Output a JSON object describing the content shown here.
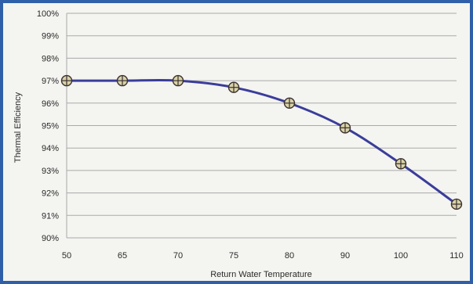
{
  "colors": {
    "border": "#2f5fa8",
    "plot_background": "#f4f4f1",
    "gridline": "#a9a9a9",
    "series_line": "#3a3d9a",
    "marker_fill": "#d8d2a6",
    "marker_stroke": "#3a3030"
  },
  "chart_data": {
    "type": "line",
    "title": "",
    "xlabel": "Return Water Temperature",
    "ylabel": "Thermal Efficiency",
    "categories": [
      "50",
      "65",
      "70",
      "75",
      "80",
      "90",
      "100",
      "110"
    ],
    "series": [
      {
        "values": [
          97.0,
          97.0,
          97.0,
          96.7,
          96.0,
          94.9,
          93.3,
          91.5
        ]
      }
    ],
    "ylim": [
      90,
      100
    ],
    "y_ticks": [
      90,
      91,
      92,
      93,
      94,
      95,
      96,
      97,
      98,
      99,
      100
    ],
    "y_tick_labels": [
      "90%",
      "91%",
      "92%",
      "93%",
      "94%",
      "95%",
      "96%",
      "97%",
      "98%",
      "99%",
      "100%"
    ],
    "grid": "horizontal",
    "marker": "circle-cross",
    "legend": "none"
  }
}
